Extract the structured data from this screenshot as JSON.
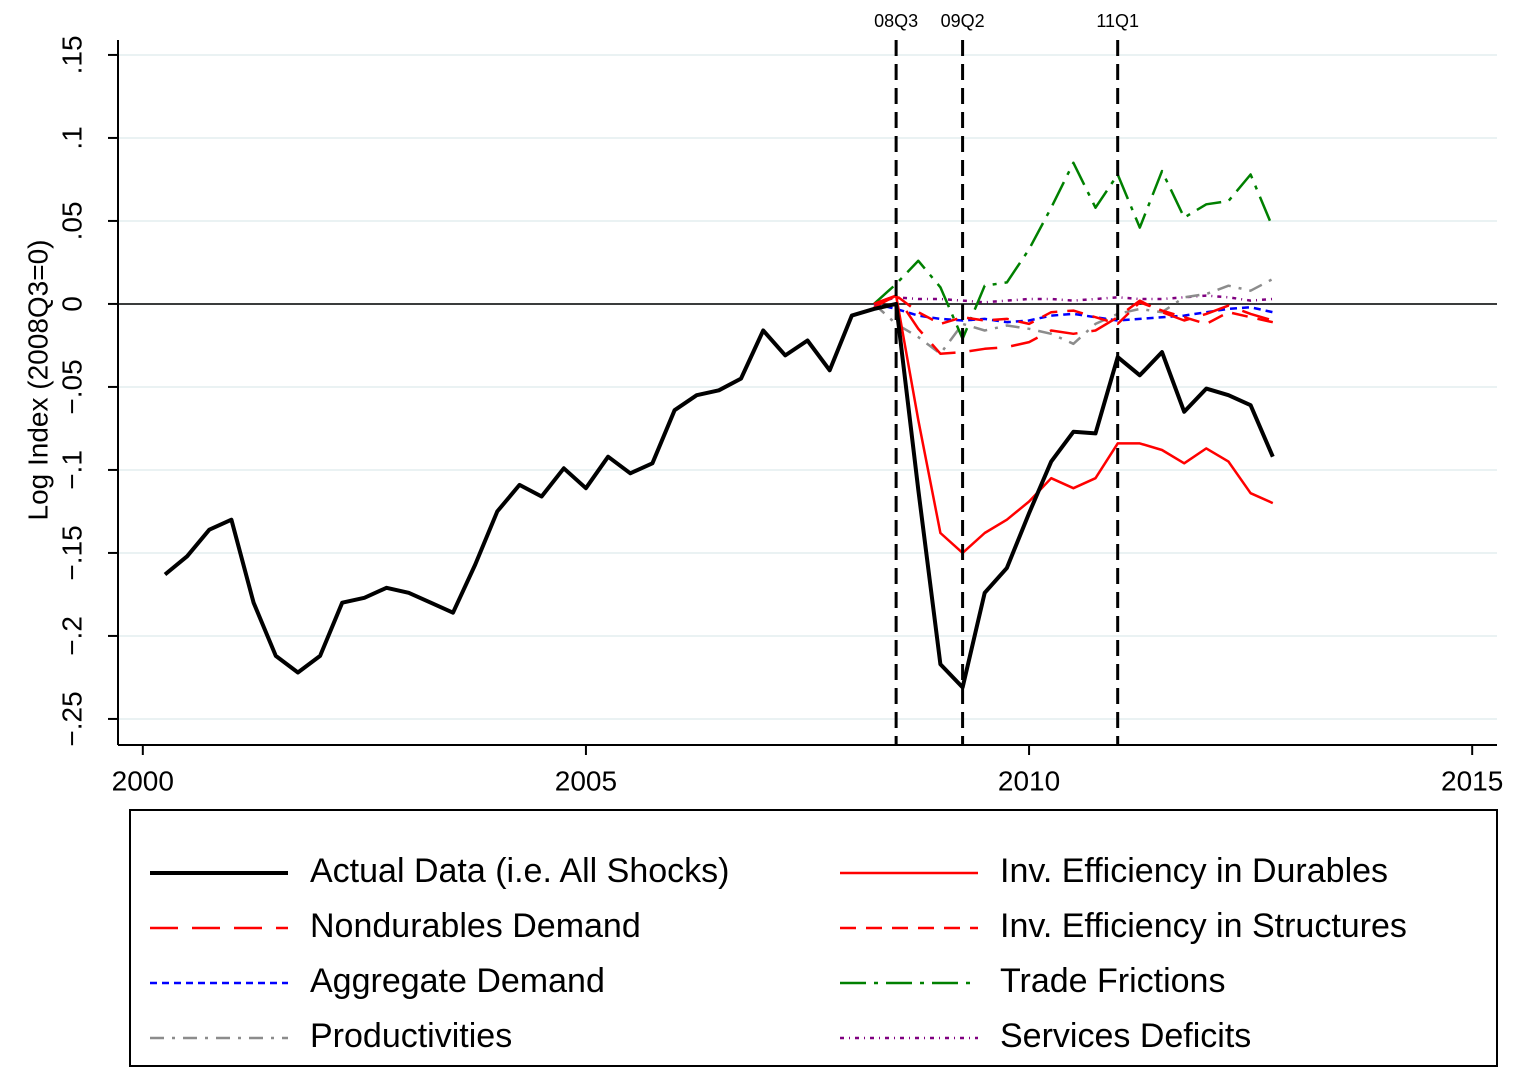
{
  "chart_data": {
    "type": "line",
    "y_label": "Log Index (2008Q3=0)",
    "x": [
      2000.25,
      2000.5,
      2000.75,
      2001.0,
      2001.25,
      2001.5,
      2001.75,
      2002.0,
      2002.25,
      2002.5,
      2002.75,
      2003.0,
      2003.25,
      2003.5,
      2003.75,
      2004.0,
      2004.25,
      2004.5,
      2004.75,
      2005.0,
      2005.25,
      2005.5,
      2005.75,
      2006.0,
      2006.25,
      2006.5,
      2006.75,
      2007.0,
      2007.25,
      2007.5,
      2007.75,
      2008.0,
      2008.25,
      2008.5,
      2008.75,
      2009.0,
      2009.25,
      2009.5,
      2009.75,
      2010.0,
      2010.25,
      2010.5,
      2010.75,
      2011.0,
      2011.25,
      2011.5,
      2011.75,
      2012.0,
      2012.25,
      2012.5,
      2012.75
    ],
    "series": [
      {
        "name": "Actual Data (i.e. All Shocks)",
        "color": "#000000",
        "dash": "solid",
        "width": 4,
        "values": [
          -0.163,
          -0.152,
          -0.136,
          -0.13,
          -0.18,
          -0.212,
          -0.222,
          -0.212,
          -0.18,
          -0.177,
          -0.171,
          -0.174,
          -0.18,
          -0.186,
          -0.157,
          -0.125,
          -0.109,
          -0.116,
          -0.099,
          -0.111,
          -0.092,
          -0.102,
          -0.096,
          -0.064,
          -0.055,
          -0.052,
          -0.045,
          -0.016,
          -0.031,
          -0.022,
          -0.04,
          -0.007,
          -0.003,
          0,
          -0.112,
          -0.217,
          -0.231,
          -0.174,
          -0.159,
          -0.126,
          -0.095,
          -0.077,
          -0.078,
          -0.032,
          -0.043,
          -0.029,
          -0.065,
          -0.051,
          -0.055,
          -0.061,
          -0.092
        ]
      },
      {
        "name": "Inv. Efficiency in Durables",
        "color": "#ff0000",
        "dash": "solid",
        "width": 2.5,
        "values": [
          null,
          null,
          null,
          null,
          null,
          null,
          null,
          null,
          null,
          null,
          null,
          null,
          null,
          null,
          null,
          null,
          null,
          null,
          null,
          null,
          null,
          null,
          null,
          null,
          null,
          null,
          null,
          null,
          null,
          null,
          null,
          null,
          -0.002,
          0.005,
          -0.07,
          -0.138,
          -0.15,
          -0.138,
          -0.13,
          -0.119,
          -0.105,
          -0.111,
          -0.105,
          -0.084,
          -0.084,
          -0.088,
          -0.096,
          -0.087,
          -0.095,
          -0.114,
          -0.12
        ]
      },
      {
        "name": "Nondurables Demand",
        "color": "#ff0000",
        "dash": "longdash",
        "width": 2.5,
        "values": [
          null,
          null,
          null,
          null,
          null,
          null,
          null,
          null,
          null,
          null,
          null,
          null,
          null,
          null,
          null,
          null,
          null,
          null,
          null,
          null,
          null,
          null,
          null,
          null,
          null,
          null,
          null,
          null,
          null,
          null,
          null,
          null,
          0,
          0.005,
          -0.015,
          -0.03,
          -0.029,
          -0.027,
          -0.026,
          -0.023,
          -0.016,
          -0.018,
          -0.016,
          -0.008,
          0.002,
          -0.005,
          -0.01,
          -0.006,
          -0.001,
          -0.006,
          -0.01
        ]
      },
      {
        "name": "Inv. Efficiency in Structures",
        "color": "#ff0000",
        "dash": "dash",
        "width": 2.5,
        "values": [
          null,
          null,
          null,
          null,
          null,
          null,
          null,
          null,
          null,
          null,
          null,
          null,
          null,
          null,
          null,
          null,
          null,
          null,
          null,
          null,
          null,
          null,
          null,
          null,
          null,
          null,
          null,
          null,
          null,
          null,
          null,
          null,
          0,
          0.005,
          -0.005,
          -0.012,
          -0.008,
          -0.01,
          -0.009,
          -0.012,
          -0.005,
          -0.004,
          -0.008,
          -0.012,
          0.001,
          -0.004,
          -0.008,
          -0.012,
          -0.005,
          -0.008,
          -0.011
        ]
      },
      {
        "name": "Aggregate Demand",
        "color": "#0000ff",
        "dash": "shortdash",
        "width": 2.5,
        "values": [
          null,
          null,
          null,
          null,
          null,
          null,
          null,
          null,
          null,
          null,
          null,
          null,
          null,
          null,
          null,
          null,
          null,
          null,
          null,
          null,
          null,
          null,
          null,
          null,
          null,
          null,
          null,
          null,
          null,
          null,
          null,
          null,
          0,
          -0.003,
          -0.007,
          -0.009,
          -0.01,
          -0.009,
          -0.011,
          -0.01,
          -0.007,
          -0.006,
          -0.008,
          -0.01,
          -0.009,
          -0.008,
          -0.007,
          -0.005,
          -0.003,
          -0.002,
          -0.005
        ]
      },
      {
        "name": "Trade Frictions",
        "color": "#008000",
        "dash": "longdashdot",
        "width": 2.5,
        "values": [
          null,
          null,
          null,
          null,
          null,
          null,
          null,
          null,
          null,
          null,
          null,
          null,
          null,
          null,
          null,
          null,
          null,
          null,
          null,
          null,
          null,
          null,
          null,
          null,
          null,
          null,
          null,
          null,
          null,
          null,
          null,
          null,
          0,
          0.012,
          0.026,
          0.01,
          -0.021,
          0.011,
          0.013,
          0.033,
          0.058,
          0.085,
          0.058,
          0.078,
          0.046,
          0.08,
          0.052,
          0.06,
          0.062,
          0.078,
          0.046
        ]
      },
      {
        "name": "Productivities",
        "color": "#8c8c8c",
        "dash": "dashdot",
        "width": 2.5,
        "values": [
          null,
          null,
          null,
          null,
          null,
          null,
          null,
          null,
          null,
          null,
          null,
          null,
          null,
          null,
          null,
          null,
          null,
          null,
          null,
          null,
          null,
          null,
          null,
          null,
          null,
          null,
          null,
          null,
          null,
          null,
          null,
          null,
          0,
          -0.012,
          -0.02,
          -0.03,
          -0.012,
          -0.016,
          -0.013,
          -0.015,
          -0.018,
          -0.024,
          -0.012,
          -0.006,
          -0.003,
          -0.005,
          0.004,
          0.006,
          0.011,
          0.008,
          0.015
        ]
      },
      {
        "name": "Services Deficits",
        "color": "#800080",
        "dash": "dotdash",
        "width": 2.5,
        "values": [
          null,
          null,
          null,
          null,
          null,
          null,
          null,
          null,
          null,
          null,
          null,
          null,
          null,
          null,
          null,
          null,
          null,
          null,
          null,
          null,
          null,
          null,
          null,
          null,
          null,
          null,
          null,
          null,
          null,
          null,
          null,
          null,
          0,
          0.004,
          0.003,
          0.003,
          0.002,
          0.001,
          0.002,
          0.003,
          0.003,
          0.002,
          0.003,
          0.004,
          0.003,
          0.003,
          0.004,
          0.005,
          0.004,
          0.002,
          0.003
        ]
      }
    ],
    "xlim": [
      1999.72,
      2015.28
    ],
    "xticks": [
      2000,
      2005,
      2010,
      2015
    ],
    "ylim": [
      -0.2657,
      0.159
    ],
    "yticks": [
      {
        "value": -0.25,
        "label": "−.25"
      },
      {
        "value": -0.2,
        "label": "−.2"
      },
      {
        "value": -0.15,
        "label": "−.15"
      },
      {
        "value": -0.1,
        "label": "−.1"
      },
      {
        "value": -0.05,
        "label": "−.05"
      },
      0,
      {
        "value": 0.05,
        "label": ".05"
      },
      {
        "value": 0.1,
        "label": ".1"
      },
      {
        "value": 0.15,
        "label": ".15"
      }
    ],
    "grid": true,
    "grid_color": "#eaf2f3",
    "hline": 0,
    "annotations": [
      {
        "x": 2008.5,
        "label": "08Q3"
      },
      {
        "x": 2009.25,
        "label": "09Q2"
      },
      {
        "x": 2011.0,
        "label": "11Q1"
      }
    ],
    "legend": "bottom"
  }
}
